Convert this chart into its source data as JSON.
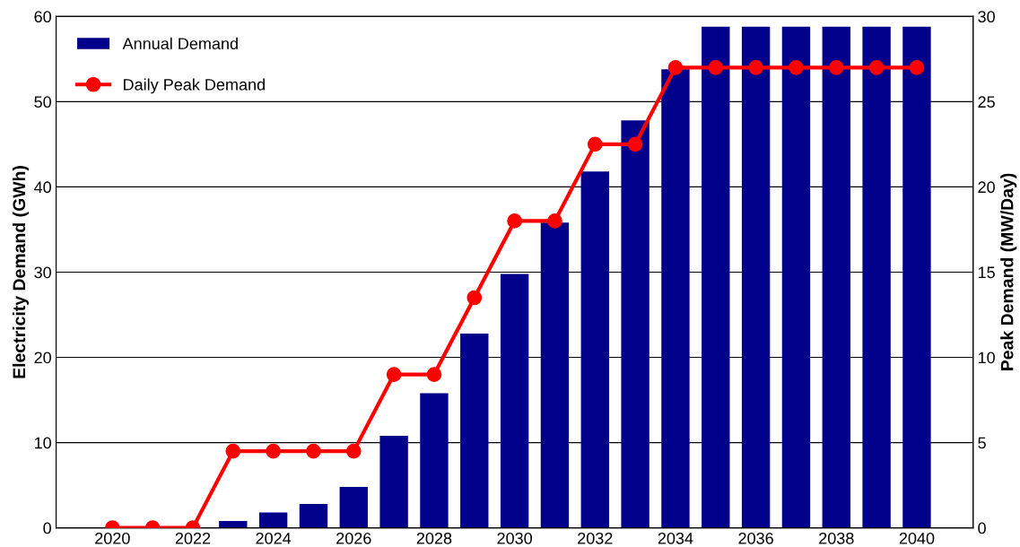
{
  "chart_data": {
    "type": "bar",
    "xlabel": null,
    "ylabel": "Electricity Demand (GWh)",
    "y2label": "Peak Demand (MW/Day)",
    "x": [
      2020,
      2021,
      2022,
      2023,
      2024,
      2025,
      2026,
      2027,
      2028,
      2029,
      2030,
      2031,
      2032,
      2033,
      2034,
      2035,
      2036,
      2037,
      2038,
      2039,
      2040
    ],
    "series": [
      {
        "name": "Annual Demand",
        "color": "#00008b",
        "values": [
          0,
          0,
          0,
          0.8,
          1.8,
          2.8,
          4.8,
          10.8,
          15.8,
          22.8,
          29.8,
          35.8,
          41.8,
          47.8,
          53.8,
          58.8,
          58.8,
          58.8,
          58.8,
          58.8,
          58.8
        ]
      },
      {
        "name": "Daily Peak Demand",
        "type": "line",
        "axis": "y2",
        "color": "#ff0000",
        "marker": "circle",
        "values": [
          0,
          0,
          0,
          4.5,
          4.5,
          4.5,
          4.5,
          9,
          9,
          13.5,
          18,
          18,
          22.5,
          22.5,
          27,
          27,
          27,
          27,
          27,
          27,
          27
        ]
      }
    ],
    "xlim": [
      2018.6,
      2041.4
    ],
    "xticks": [
      2020,
      2022,
      2024,
      2026,
      2028,
      2030,
      2032,
      2034,
      2036,
      2038,
      2040
    ],
    "ylim": [
      0,
      60
    ],
    "yticks": [
      0,
      10,
      20,
      30,
      40,
      50,
      60
    ],
    "y2lim": [
      0,
      30
    ],
    "y2ticks": [
      0,
      5,
      10,
      15,
      20,
      25,
      30
    ],
    "grid": "y",
    "legend": "top left"
  }
}
